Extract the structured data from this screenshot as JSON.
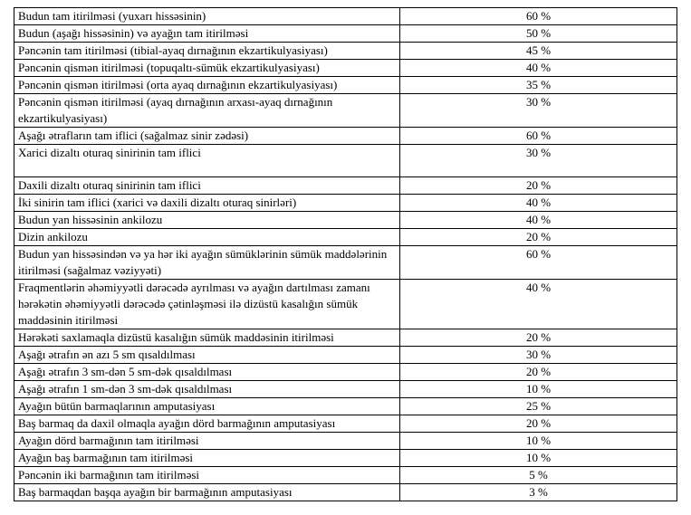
{
  "table": {
    "rows": [
      [
        "Budun tam itirilməsi (yuxarı hissəsinin)",
        "60 %"
      ],
      [
        "Budun (aşağı hissəsinin) və ayağın tam itirilməsi",
        "50 %"
      ],
      [
        "Pəncənin tam itirilməsi (tibial-ayaq dırnağının ekzartikulyasiyası)",
        "45 %"
      ],
      [
        "Pəncənin qismən itirilməsi (topuqaltı-sümük ekzartikulyasiyası)",
        "40 %"
      ],
      [
        "Pəncənin qismən itirilməsi (orta ayaq dırnağının ekzartikulyasiyası)",
        "35 %"
      ],
      [
        "Pəncənin qismən itirilməsi (ayaq dırnağının arxası-ayaq dırnağının ekzartikulyasiyası)",
        "30 %"
      ],
      [
        "Aşağı ətrafların tam iflici (sağalmaz sinir zədəsi)",
        "60 %"
      ],
      [
        "Xarici dizaltı oturaq sinirinin tam iflici",
        "30 %"
      ],
      [
        "Daxili dizaltı oturaq sinirinin tam iflici",
        "20 %"
      ],
      [
        "İki sinirin tam iflici (xarici və daxili dizaltı oturaq sinirləri)",
        "40 %"
      ],
      [
        "Budun yan hissəsinin ankilozu",
        "40 %"
      ],
      [
        "Dizin ankilozu",
        "20 %"
      ],
      [
        "Budun yan hissəsindən və ya hər iki ayağın sümüklərinin sümük maddələrinin itirilməsi (sağalmaz vəziyyəti)",
        "60 %"
      ],
      [
        "Fraqmentlərin əhəmiyyətli dərəcədə ayrılması və ayağın dartılması zamanı hərəkətin əhəmiyyətli dərəcədə çətinləşməsi ilə dizüstü kasalığın sümük maddəsinin itirilməsi",
        "40 %"
      ],
      [
        "Hərəkəti saxlamaqla dizüstü kasalığın sümük maddəsinin itirilməsi",
        "20 %"
      ],
      [
        "Aşağı ətrafın ən azı 5 sm qısaldılması",
        "30 %"
      ],
      [
        "Aşağı ətrafın 3 sm-dən 5 sm-dək qısaldılması",
        "20 %"
      ],
      [
        "Aşağı ətrafın 1 sm-dən 3 sm-dək qısaldılması",
        "10 %"
      ],
      [
        "Ayağın bütün barmaqlarının amputasiyası",
        "25 %"
      ],
      [
        "Baş barmaq da daxil olmaqla ayağın dörd barmağının amputasiyası",
        "20 %"
      ],
      [
        "Ayağın dörd barmağının tam itirilməsi",
        "10 %"
      ],
      [
        "Ayağın baş barmağının tam itirilməsi",
        "10 %"
      ],
      [
        "Pəncənin iki barmağının tam itirilməsi",
        "5 %"
      ],
      [
        "Baş barmaqdan başqa ayağın bir barmağının amputasiyası",
        "3 %"
      ]
    ]
  }
}
